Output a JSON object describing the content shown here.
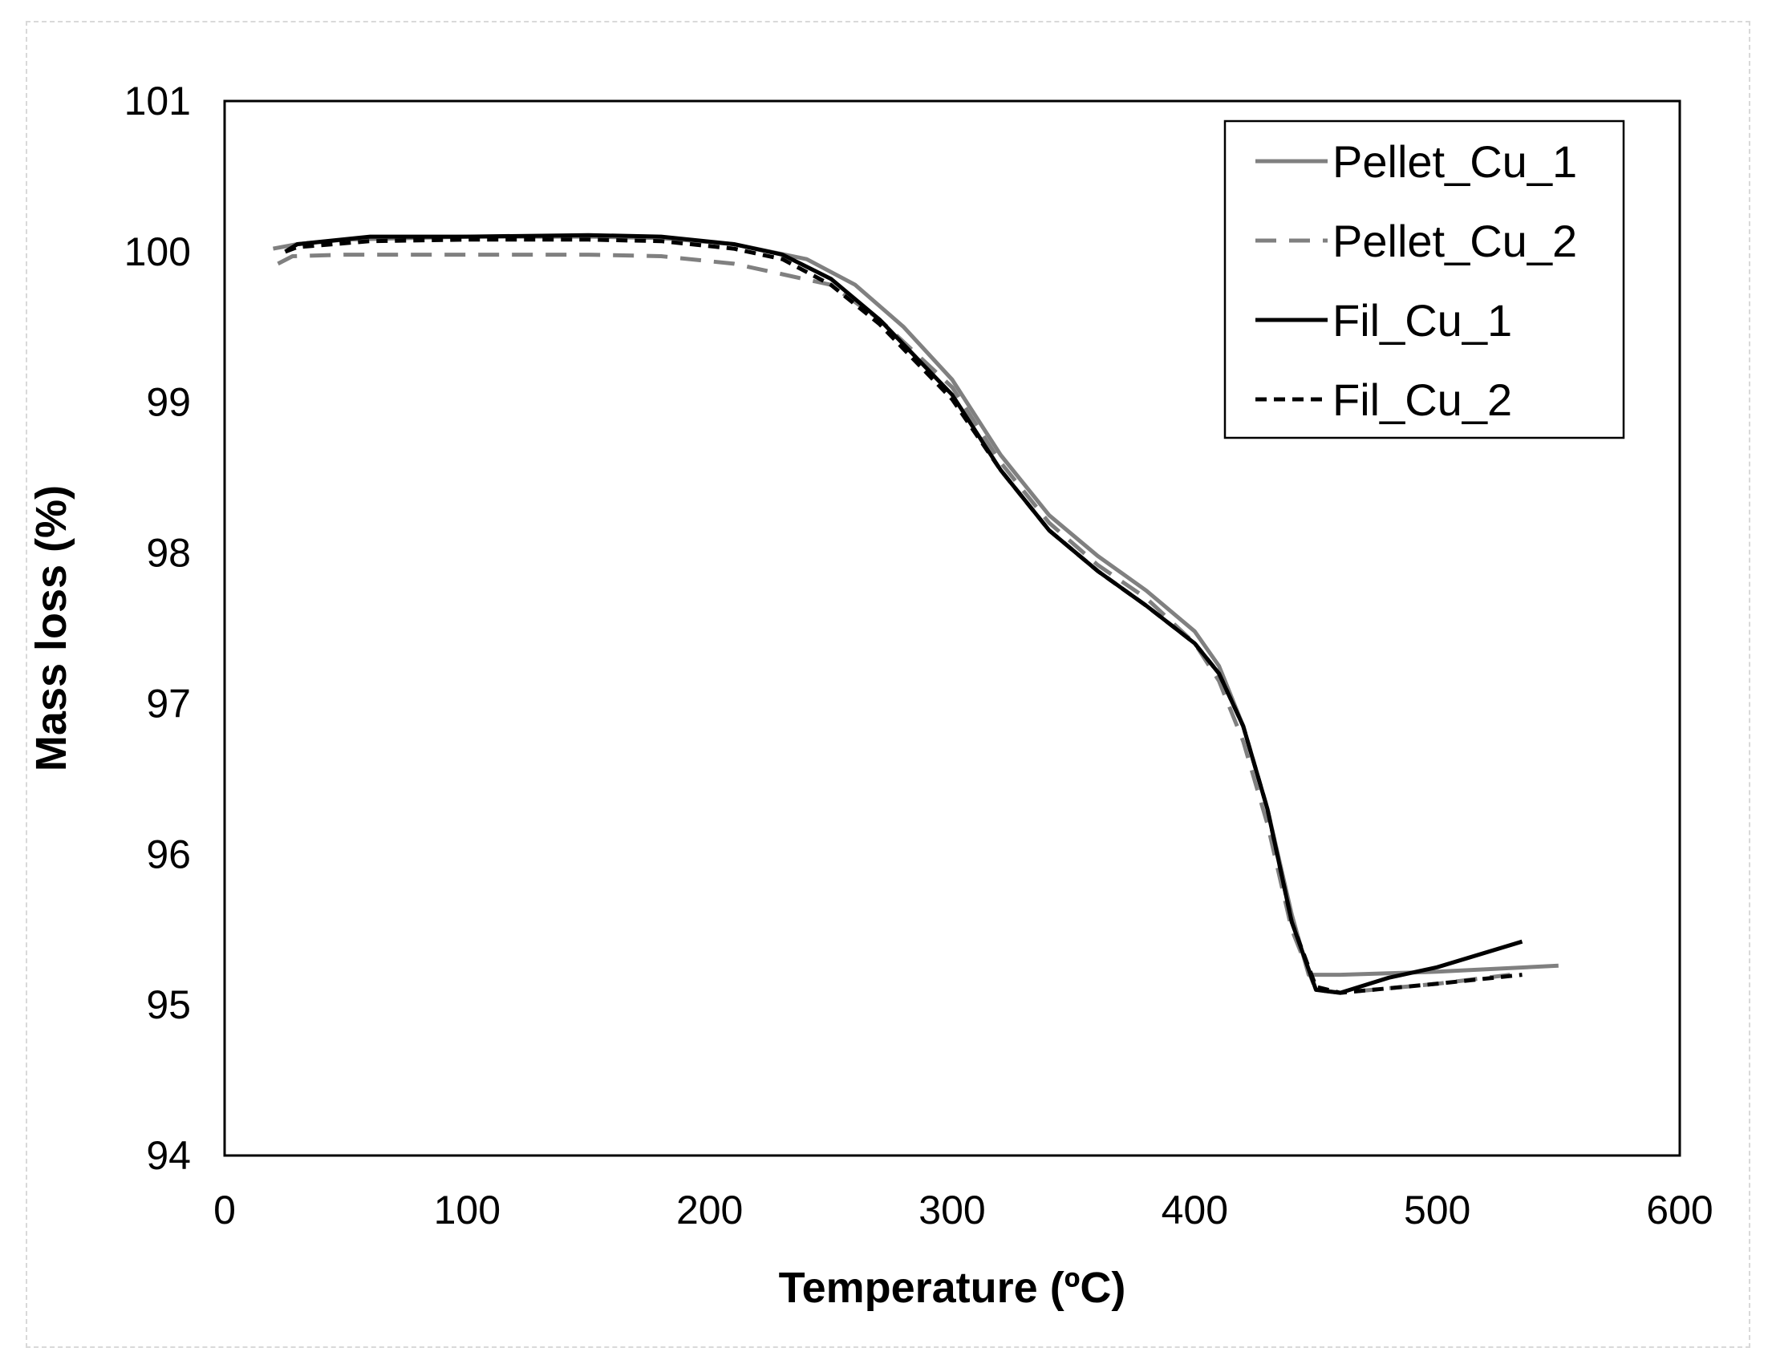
{
  "chart_data": {
    "type": "line",
    "title": "",
    "xlabel": "Temperature (ºC)",
    "ylabel": "Mass loss (%)",
    "xlim": [
      0,
      600
    ],
    "ylim": [
      94,
      101
    ],
    "xticks": [
      "0",
      "100",
      "200",
      "300",
      "400",
      "500",
      "600"
    ],
    "yticks": [
      "94",
      "95",
      "96",
      "97",
      "98",
      "99",
      "100",
      "101"
    ],
    "grid": false,
    "legend_position": "top-right",
    "series": [
      {
        "name": "Pellet_Cu_1",
        "color": "#808080",
        "dash": "solid",
        "points": [
          [
            20,
            100.02
          ],
          [
            30,
            100.05
          ],
          [
            50,
            100.08
          ],
          [
            100,
            100.1
          ],
          [
            150,
            100.1
          ],
          [
            180,
            100.09
          ],
          [
            210,
            100.05
          ],
          [
            240,
            99.95
          ],
          [
            260,
            99.78
          ],
          [
            280,
            99.5
          ],
          [
            300,
            99.15
          ],
          [
            320,
            98.65
          ],
          [
            340,
            98.25
          ],
          [
            360,
            97.98
          ],
          [
            380,
            97.75
          ],
          [
            400,
            97.48
          ],
          [
            410,
            97.25
          ],
          [
            420,
            96.85
          ],
          [
            430,
            96.3
          ],
          [
            440,
            95.6
          ],
          [
            447,
            95.2
          ],
          [
            460,
            95.2
          ],
          [
            500,
            95.22
          ],
          [
            550,
            95.26
          ]
        ]
      },
      {
        "name": "Pellet_Cu_2",
        "color": "#808080",
        "dash": "dashed",
        "points": [
          [
            22,
            99.92
          ],
          [
            28,
            99.97
          ],
          [
            50,
            99.98
          ],
          [
            100,
            99.98
          ],
          [
            150,
            99.98
          ],
          [
            180,
            99.97
          ],
          [
            210,
            99.92
          ],
          [
            230,
            99.85
          ],
          [
            250,
            99.78
          ],
          [
            270,
            99.55
          ],
          [
            300,
            99.1
          ],
          [
            320,
            98.6
          ],
          [
            340,
            98.2
          ],
          [
            360,
            97.92
          ],
          [
            380,
            97.7
          ],
          [
            400,
            97.4
          ],
          [
            410,
            97.15
          ],
          [
            420,
            96.75
          ],
          [
            430,
            96.2
          ],
          [
            440,
            95.5
          ],
          [
            450,
            95.1
          ],
          [
            460,
            95.08
          ],
          [
            500,
            95.14
          ],
          [
            530,
            95.2
          ]
        ]
      },
      {
        "name": "Fil_Cu_1",
        "color": "#000000",
        "dash": "solid",
        "points": [
          [
            25,
            100.0
          ],
          [
            30,
            100.05
          ],
          [
            60,
            100.1
          ],
          [
            100,
            100.1
          ],
          [
            150,
            100.11
          ],
          [
            180,
            100.1
          ],
          [
            210,
            100.05
          ],
          [
            230,
            99.98
          ],
          [
            250,
            99.82
          ],
          [
            270,
            99.55
          ],
          [
            300,
            99.05
          ],
          [
            320,
            98.55
          ],
          [
            340,
            98.15
          ],
          [
            360,
            97.88
          ],
          [
            380,
            97.65
          ],
          [
            400,
            97.4
          ],
          [
            410,
            97.2
          ],
          [
            420,
            96.85
          ],
          [
            430,
            96.3
          ],
          [
            440,
            95.55
          ],
          [
            450,
            95.1
          ],
          [
            460,
            95.08
          ],
          [
            480,
            95.18
          ],
          [
            500,
            95.25
          ],
          [
            535,
            95.42
          ]
        ]
      },
      {
        "name": "Fil_Cu_2",
        "color": "#000000",
        "dash": "dotted",
        "points": [
          [
            25,
            100.0
          ],
          [
            30,
            100.03
          ],
          [
            60,
            100.07
          ],
          [
            100,
            100.08
          ],
          [
            150,
            100.08
          ],
          [
            180,
            100.07
          ],
          [
            210,
            100.02
          ],
          [
            230,
            99.95
          ],
          [
            250,
            99.78
          ],
          [
            270,
            99.52
          ],
          [
            300,
            99.02
          ],
          [
            320,
            98.55
          ],
          [
            340,
            98.15
          ],
          [
            360,
            97.88
          ],
          [
            380,
            97.65
          ],
          [
            400,
            97.4
          ],
          [
            410,
            97.2
          ],
          [
            420,
            96.85
          ],
          [
            430,
            96.3
          ],
          [
            440,
            95.55
          ],
          [
            450,
            95.12
          ],
          [
            460,
            95.08
          ],
          [
            500,
            95.14
          ],
          [
            535,
            95.2
          ]
        ]
      }
    ]
  }
}
